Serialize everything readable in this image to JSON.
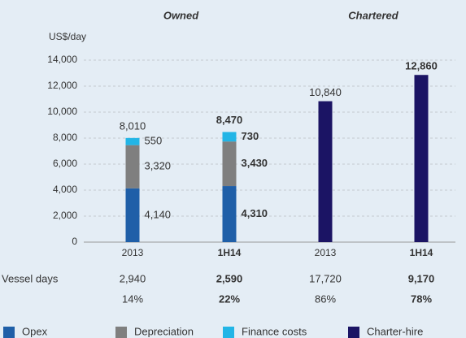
{
  "chart_data": {
    "type": "stacked_bar",
    "y_label": "US$/day",
    "groups": [
      {
        "name": "Owned",
        "categories": [
          0,
          1
        ]
      },
      {
        "name": "Chartered",
        "categories": [
          2,
          3
        ]
      }
    ],
    "categories": [
      "2013",
      "1H14",
      "2013",
      "1H14"
    ],
    "series": [
      {
        "name": "Opex",
        "color": "#1f5fa8",
        "values": [
          4140,
          4310,
          null,
          null
        ],
        "value_labels": [
          "4,140",
          "4,310",
          null,
          null
        ]
      },
      {
        "name": "Depreciation",
        "color": "#7f7f7f",
        "values": [
          3320,
          3430,
          null,
          null
        ],
        "value_labels": [
          "3,320",
          "3,430",
          null,
          null
        ]
      },
      {
        "name": "Finance costs",
        "color": "#22b5e6",
        "values": [
          550,
          730,
          null,
          null
        ],
        "value_labels": [
          "550",
          "730",
          null,
          null
        ]
      },
      {
        "name": "Charter-hire",
        "color": "#1b1464",
        "values": [
          null,
          null,
          10840,
          12860
        ],
        "value_labels": [
          null,
          null,
          "10,840",
          "12,860"
        ]
      }
    ],
    "totals": [
      8010,
      8470,
      null,
      null
    ],
    "total_labels": [
      "8,010",
      "8,470",
      null,
      null
    ],
    "ylim": [
      0,
      14000
    ],
    "yticks": [
      0,
      {
        "value": 2000,
        "label": "2,000"
      },
      {
        "value": 4000,
        "label": "4,000"
      },
      {
        "value": 6000,
        "label": "6,000"
      },
      {
        "value": 8000,
        "label": "8,000"
      },
      {
        "value": 10000,
        "label": "10,000"
      },
      {
        "value": 12000,
        "label": "12,000"
      },
      {
        "value": 14000,
        "label": "14,000"
      }
    ],
    "grid": true,
    "legend": "bottom",
    "vessel_days": {
      "label": "Vessel days",
      "values": [
        2940,
        2590,
        17720,
        9170
      ],
      "value_labels": [
        "2,940",
        "2,590",
        "17,720",
        "9,170"
      ]
    },
    "shares": {
      "values": [
        14,
        22,
        86,
        78
      ],
      "value_labels": [
        "14%",
        "22%",
        "86%",
        "78%"
      ]
    }
  }
}
